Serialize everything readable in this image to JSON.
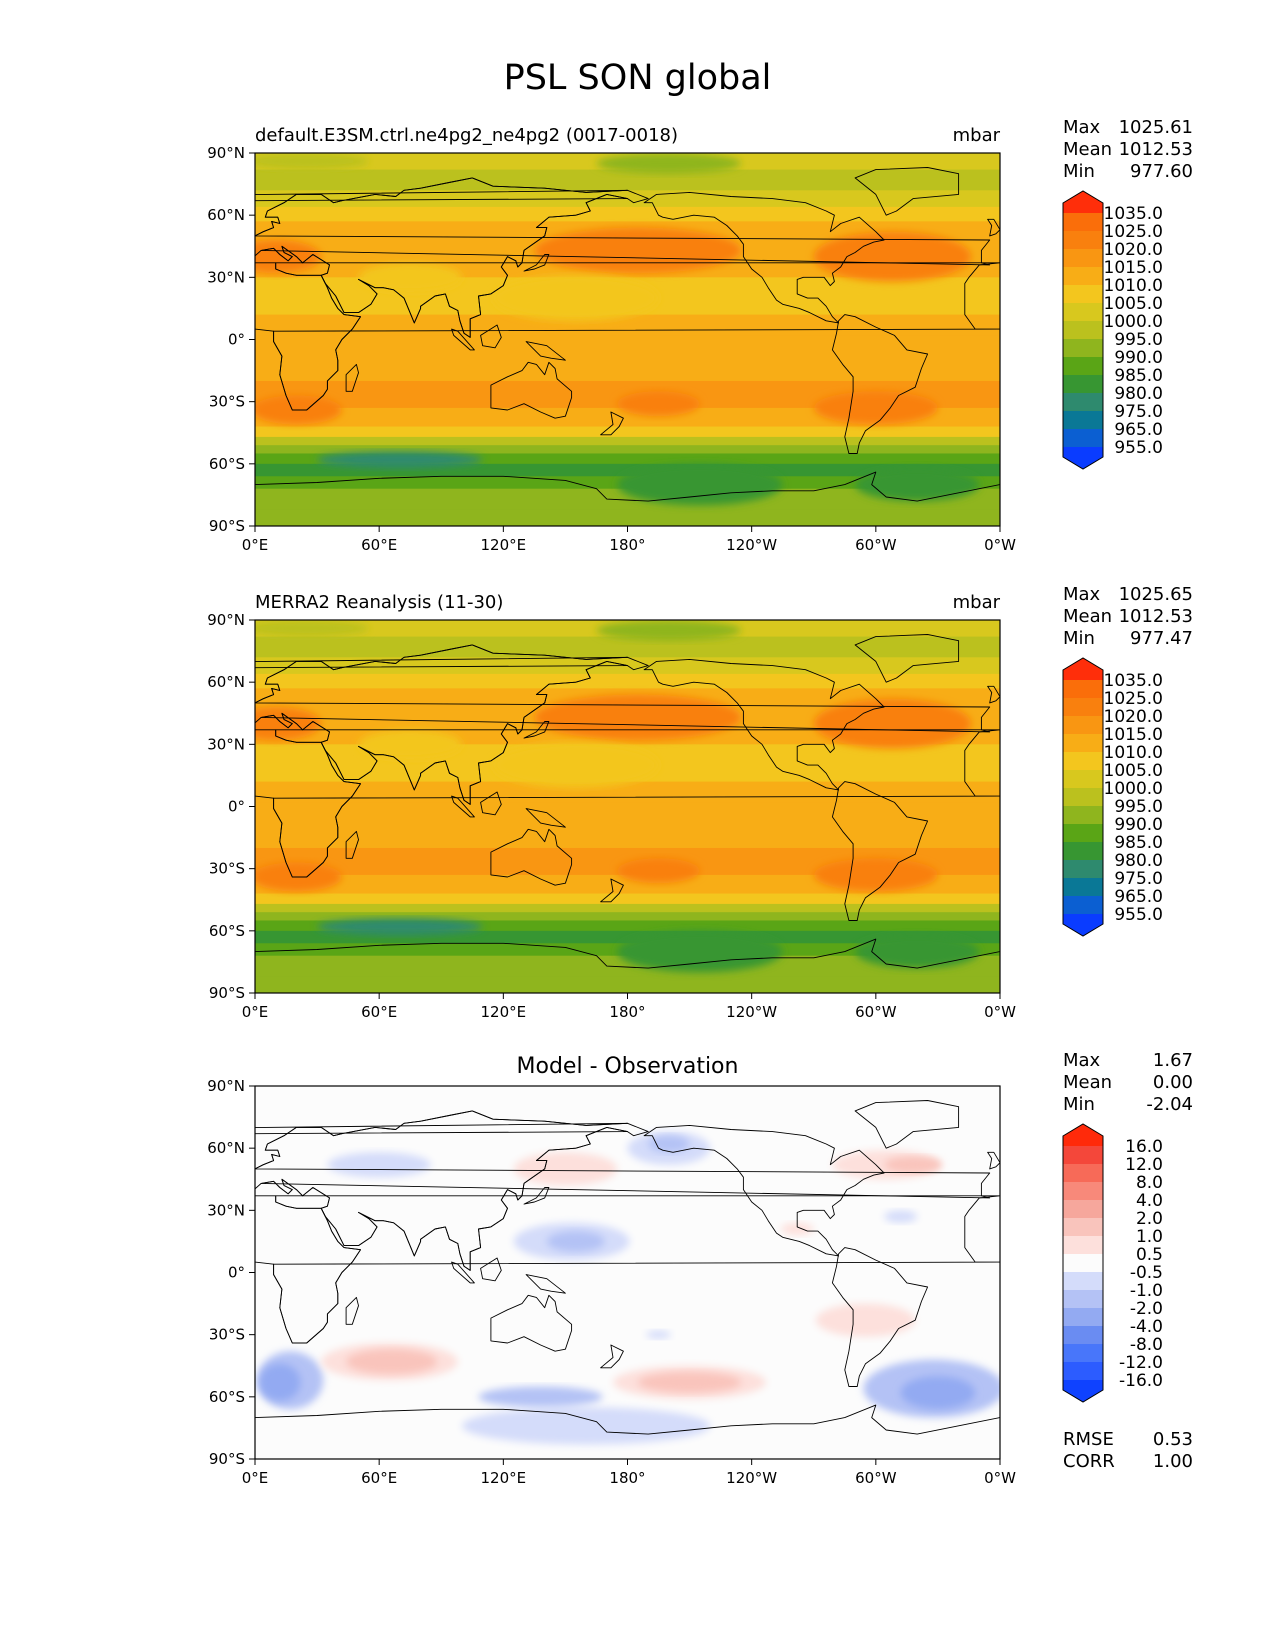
{
  "page_title": "PSL SON global",
  "x_ticks": [
    "0°E",
    "60°E",
    "120°E",
    "180°",
    "120°W",
    "60°W",
    "0°W"
  ],
  "y_ticks": [
    "90°N",
    "60°N",
    "30°N",
    "0°",
    "30°S",
    "60°S",
    "90°S"
  ],
  "psl_colors": [
    "#0a3cff",
    "#0b5fd2",
    "#0a7896",
    "#2e8a6e",
    "#379632",
    "#5aa516",
    "#8fb51e",
    "#bbc11e",
    "#d8c81e",
    "#f3c61e",
    "#f8ad16",
    "#f99612",
    "#f9800e",
    "#fa6e0a",
    "#ff2e0a"
  ],
  "psl_levels": [
    "955.0",
    "965.0",
    "975.0",
    "980.0",
    "985.0",
    "990.0",
    "995.0",
    "1000.0",
    "1005.0",
    "1010.0",
    "1015.0",
    "1020.0",
    "1025.0",
    "1035.0"
  ],
  "diff_colors": [
    "#0f42ff",
    "#2c5cff",
    "#4876fa",
    "#6a8cf2",
    "#93aaf2",
    "#b4c2f5",
    "#d4dcfa",
    "#fcfcfc",
    "#fde0dc",
    "#f9c4bc",
    "#f6a79c",
    "#f8897a",
    "#f76a58",
    "#f4473a",
    "#ff2a0a"
  ],
  "diff_levels": [
    "-16.0",
    "-12.0",
    "-8.0",
    "-4.0",
    "-2.0",
    "-1.0",
    "-0.5",
    "0.5",
    "1.0",
    "2.0",
    "4.0",
    "8.0",
    "12.0",
    "16.0"
  ],
  "panels": [
    {
      "title_left": "default.E3SM.ctrl.ne4pg2_ne4pg2 (0017-0018)",
      "title_center": "",
      "units": "mbar",
      "stats": [
        {
          "k": "Max",
          "v": "1025.61"
        },
        {
          "k": "Mean",
          "v": "1012.53"
        },
        {
          "k": "Min",
          "v": "977.60"
        }
      ],
      "footer": []
    },
    {
      "title_left": "MERRA2 Reanalysis (11-30)",
      "title_center": "",
      "units": "mbar",
      "stats": [
        {
          "k": "Max",
          "v": "1025.65"
        },
        {
          "k": "Mean",
          "v": "1012.53"
        },
        {
          "k": "Min",
          "v": "977.47"
        }
      ],
      "footer": []
    },
    {
      "title_left": "",
      "title_center": "Model - Observation",
      "units": "",
      "stats": [
        {
          "k": "Max",
          "v": "1.67"
        },
        {
          "k": "Mean",
          "v": "0.00"
        },
        {
          "k": "Min",
          "v": "-2.04"
        }
      ],
      "footer": [
        {
          "k": "RMSE",
          "v": "0.53"
        },
        {
          "k": "CORR",
          "v": "1.00"
        }
      ]
    }
  ]
}
